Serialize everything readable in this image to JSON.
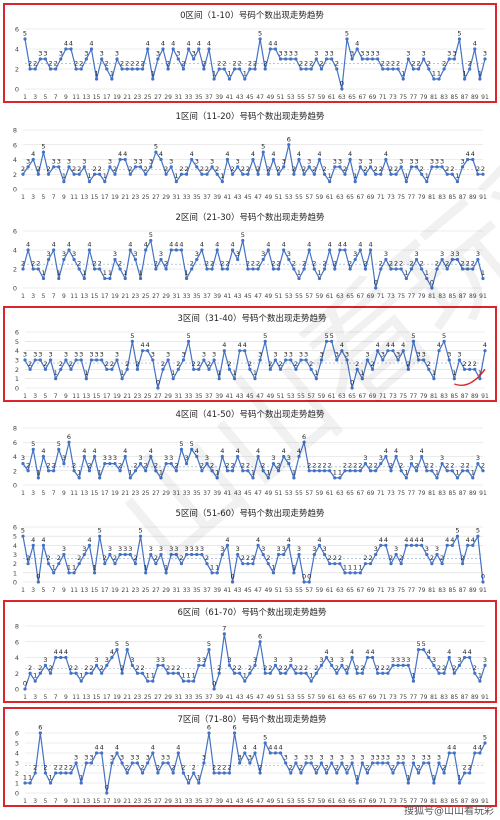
{
  "footer": "搜狐号@山山看玩彩",
  "watermark": "山山看玩彩",
  "colors": {
    "line": "#4472c4",
    "highlight": "#d9262c",
    "grid": "#d9d9d9",
    "avg": "#8aa6d6"
  },
  "chart_data": [
    {
      "type": "line",
      "title": "0区间（1-10）号码个数出现走势趋势",
      "ylim": [
        0,
        6
      ],
      "yticks": [
        0,
        2,
        4,
        6
      ],
      "highlighted": true,
      "x": [
        1,
        2,
        3,
        4,
        5,
        6,
        7,
        8,
        9,
        10,
        11,
        12,
        13,
        14,
        15,
        16,
        17,
        18,
        19,
        20,
        21,
        22,
        23,
        24,
        25,
        26,
        27,
        28,
        29,
        30,
        31,
        32,
        33,
        34,
        35,
        36,
        37,
        38,
        39,
        40,
        41,
        42,
        43,
        44,
        45,
        46,
        47,
        48,
        49,
        50,
        51,
        52,
        53,
        54,
        55,
        56,
        57,
        58,
        59,
        60,
        61,
        62,
        63,
        64,
        65,
        66,
        67,
        68,
        69,
        70,
        71,
        72,
        73,
        74,
        75,
        76,
        77,
        78,
        79,
        80,
        81,
        82,
        83,
        84,
        85,
        86,
        87,
        88,
        89,
        90,
        91
      ],
      "values": [
        5,
        2,
        2,
        3,
        3,
        2,
        2,
        3,
        4,
        4,
        2,
        2,
        3,
        4,
        1,
        3,
        2,
        1,
        3,
        2,
        2,
        2,
        2,
        2,
        4,
        1,
        3,
        4,
        2,
        4,
        3,
        2,
        4,
        3,
        4,
        2,
        4,
        1,
        2,
        2,
        1,
        2,
        2,
        1,
        2,
        2,
        5,
        2,
        4,
        4,
        3,
        3,
        3,
        3,
        2,
        2,
        2,
        3,
        2,
        3,
        3,
        2,
        0,
        5,
        3,
        4,
        3,
        3,
        3,
        3,
        2,
        2,
        2,
        2,
        1,
        3,
        2,
        2,
        3,
        2,
        1,
        1,
        2,
        3,
        3,
        5,
        1,
        2,
        4,
        1,
        3
      ]
    },
    {
      "type": "line",
      "title": "1区间（11-20）号码个数出现走势趋势",
      "ylim": [
        0,
        8
      ],
      "yticks": [
        0,
        2,
        4,
        6,
        8
      ],
      "highlighted": false,
      "x": [
        1,
        2,
        3,
        4,
        5,
        6,
        7,
        8,
        9,
        10,
        11,
        12,
        13,
        14,
        15,
        16,
        17,
        18,
        19,
        20,
        21,
        22,
        23,
        24,
        25,
        26,
        27,
        28,
        29,
        30,
        31,
        32,
        33,
        34,
        35,
        36,
        37,
        38,
        39,
        40,
        41,
        42,
        43,
        44,
        45,
        46,
        47,
        48,
        49,
        50,
        51,
        52,
        53,
        54,
        55,
        56,
        57,
        58,
        59,
        60,
        61,
        62,
        63,
        64,
        65,
        66,
        67,
        68,
        69,
        70,
        71,
        72,
        73,
        74,
        75,
        76,
        77,
        78,
        79,
        80,
        81,
        82,
        83,
        84,
        85,
        86,
        87,
        88,
        89,
        90,
        91
      ],
      "values": [
        2,
        3,
        4,
        2,
        5,
        2,
        3,
        3,
        1,
        3,
        2,
        2,
        3,
        1,
        2,
        2,
        1,
        3,
        2,
        4,
        4,
        2,
        3,
        3,
        2,
        3,
        5,
        4,
        2,
        3,
        1,
        2,
        2,
        4,
        3,
        2,
        2,
        3,
        2,
        1,
        4,
        2,
        3,
        2,
        2,
        4,
        2,
        5,
        2,
        4,
        2,
        3,
        6,
        2,
        4,
        2,
        3,
        2,
        4,
        2,
        1,
        3,
        3,
        2,
        4,
        1,
        3,
        2,
        3,
        2,
        2,
        4,
        2,
        2,
        3,
        1,
        3,
        3,
        2,
        1,
        3,
        3,
        3,
        2,
        2,
        1,
        3,
        4,
        4,
        2,
        2
      ]
    },
    {
      "type": "line",
      "title": "2区间（21-30）号码个数出现走势趋势",
      "ylim": [
        0,
        6
      ],
      "yticks": [
        0,
        2,
        4,
        6
      ],
      "highlighted": false,
      "x": [
        1,
        2,
        3,
        4,
        5,
        6,
        7,
        8,
        9,
        10,
        11,
        12,
        13,
        14,
        15,
        16,
        17,
        18,
        19,
        20,
        21,
        22,
        23,
        24,
        25,
        26,
        27,
        28,
        29,
        30,
        31,
        32,
        33,
        34,
        35,
        36,
        37,
        38,
        39,
        40,
        41,
        42,
        43,
        44,
        45,
        46,
        47,
        48,
        49,
        50,
        51,
        52,
        53,
        54,
        55,
        56,
        57,
        58,
        59,
        60,
        61,
        62,
        63,
        64,
        65,
        66,
        67,
        68,
        69,
        70,
        71,
        72,
        73,
        74,
        75,
        76,
        77,
        78,
        79,
        80,
        81,
        82,
        83,
        84,
        85,
        86,
        87,
        88,
        89,
        90,
        91
      ],
      "values": [
        2,
        4,
        2,
        2,
        1,
        3,
        4,
        1,
        3,
        4,
        3,
        2,
        1,
        4,
        2,
        2,
        1,
        1,
        3,
        2,
        1,
        4,
        3,
        1,
        4,
        5,
        2,
        3,
        2,
        4,
        4,
        4,
        1,
        2,
        3,
        4,
        2,
        2,
        4,
        2,
        2,
        4,
        3,
        5,
        2,
        2,
        2,
        3,
        4,
        2,
        2,
        4,
        3,
        2,
        1,
        2,
        4,
        2,
        1,
        2,
        4,
        2,
        4,
        4,
        2,
        3,
        4,
        2,
        4,
        0,
        2,
        3,
        2,
        2,
        2,
        1,
        2,
        3,
        2,
        1,
        0,
        2,
        3,
        2,
        3,
        3,
        2,
        2,
        2,
        3,
        1
      ]
    },
    {
      "type": "line",
      "title": "3区间（31-40）号码个数出现走势趋势",
      "ylim": [
        0,
        6
      ],
      "yticks": [
        0,
        1,
        2,
        3,
        4,
        5,
        6
      ],
      "highlighted": true,
      "x": [
        1,
        2,
        3,
        4,
        5,
        6,
        7,
        8,
        9,
        10,
        11,
        12,
        13,
        14,
        15,
        16,
        17,
        18,
        19,
        20,
        21,
        22,
        23,
        24,
        25,
        26,
        27,
        28,
        29,
        30,
        31,
        32,
        33,
        34,
        35,
        36,
        37,
        38,
        39,
        40,
        41,
        42,
        43,
        44,
        45,
        46,
        47,
        48,
        49,
        50,
        51,
        52,
        53,
        54,
        55,
        56,
        57,
        58,
        59,
        60,
        61,
        62,
        63,
        64,
        65,
        66,
        67,
        68,
        69,
        70,
        71,
        72,
        73,
        74,
        75,
        76,
        77,
        78,
        79,
        80,
        81,
        82,
        83,
        84,
        85,
        86,
        87,
        88,
        89,
        90,
        91
      ],
      "values": [
        3,
        2,
        3,
        3,
        2,
        3,
        1,
        2,
        3,
        2,
        3,
        3,
        1,
        3,
        3,
        3,
        2,
        2,
        3,
        1,
        2,
        5,
        2,
        4,
        4,
        3,
        0,
        2,
        3,
        1,
        2,
        3,
        5,
        2,
        2,
        3,
        2,
        3,
        1,
        4,
        2,
        1,
        4,
        4,
        2,
        1,
        3,
        5,
        2,
        3,
        2,
        3,
        3,
        2,
        3,
        3,
        2,
        1,
        3,
        5,
        5,
        3,
        4,
        3,
        0,
        2,
        1,
        3,
        2,
        4,
        3,
        4,
        4,
        3,
        4,
        2,
        5,
        3,
        3,
        2,
        1,
        4,
        5,
        3,
        1,
        3,
        2,
        2,
        2,
        1,
        4
      ]
    },
    {
      "type": "line",
      "title": "4区间（41-50）号码个数出现走势趋势",
      "ylim": [
        0,
        8
      ],
      "yticks": [
        0,
        2,
        4,
        6,
        8
      ],
      "highlighted": false,
      "x": [
        1,
        2,
        3,
        4,
        5,
        6,
        7,
        8,
        9,
        10,
        11,
        12,
        13,
        14,
        15,
        16,
        17,
        18,
        19,
        20,
        21,
        22,
        23,
        24,
        25,
        26,
        27,
        28,
        29,
        30,
        31,
        32,
        33,
        34,
        35,
        36,
        37,
        38,
        39,
        40,
        41,
        42,
        43,
        44,
        45,
        46,
        47,
        48,
        49,
        50,
        51,
        52,
        53,
        54,
        55,
        56,
        57,
        58,
        59,
        60,
        61,
        62,
        63,
        64,
        65,
        66,
        67,
        68,
        69,
        70,
        71,
        72,
        73,
        74,
        75,
        76,
        77,
        78,
        79,
        80,
        81,
        82,
        83,
        84,
        85,
        86,
        87,
        88,
        89,
        90,
        91
      ],
      "values": [
        3,
        2,
        5,
        1,
        4,
        2,
        2,
        5,
        3,
        6,
        2,
        1,
        4,
        2,
        4,
        1,
        3,
        3,
        3,
        2,
        4,
        1,
        2,
        3,
        2,
        4,
        2,
        1,
        3,
        3,
        2,
        5,
        3,
        5,
        4,
        2,
        3,
        2,
        1,
        4,
        2,
        2,
        4,
        2,
        2,
        1,
        4,
        2,
        1,
        3,
        2,
        4,
        3,
        1,
        4,
        6,
        2,
        2,
        2,
        2,
        2,
        1,
        1,
        2,
        2,
        2,
        2,
        3,
        2,
        2,
        3,
        4,
        2,
        4,
        2,
        1,
        3,
        2,
        4,
        2,
        2,
        1,
        3,
        2,
        2,
        1,
        2,
        2,
        1,
        3,
        2
      ]
    },
    {
      "type": "line",
      "title": "5区间（51-60）号码个数出现走势趋势",
      "ylim": [
        0,
        6
      ],
      "yticks": [
        0,
        1,
        2,
        3,
        4,
        5,
        6
      ],
      "highlighted": false,
      "x": [
        1,
        2,
        3,
        4,
        5,
        6,
        7,
        8,
        9,
        10,
        11,
        12,
        13,
        14,
        15,
        16,
        17,
        18,
        19,
        20,
        21,
        22,
        23,
        24,
        25,
        26,
        27,
        28,
        29,
        30,
        31,
        32,
        33,
        34,
        35,
        36,
        37,
        38,
        39,
        40,
        41,
        42,
        43,
        44,
        45,
        46,
        47,
        48,
        49,
        50,
        51,
        52,
        53,
        54,
        55,
        56,
        57,
        58,
        59,
        60,
        61,
        62,
        63,
        64,
        65,
        66,
        67,
        68,
        69,
        70,
        71,
        72,
        73,
        74,
        75,
        76,
        77,
        78,
        79,
        80,
        81,
        82,
        83,
        84,
        85,
        86,
        87,
        88,
        89,
        90,
        91
      ],
      "values": [
        5,
        2,
        4,
        0,
        4,
        2,
        1,
        2,
        3,
        1,
        1,
        2,
        3,
        4,
        1,
        5,
        2,
        3,
        2,
        3,
        3,
        3,
        2,
        5,
        1,
        3,
        2,
        3,
        1,
        3,
        3,
        2,
        3,
        3,
        3,
        3,
        2,
        1,
        1,
        3,
        4,
        0,
        3,
        2,
        2,
        2,
        4,
        3,
        2,
        1,
        3,
        3,
        4,
        1,
        3,
        0,
        0,
        3,
        4,
        3,
        2,
        2,
        2,
        1,
        1,
        1,
        1,
        2,
        2,
        3,
        4,
        4,
        2,
        3,
        2,
        4,
        4,
        4,
        4,
        3,
        2,
        3,
        2,
        4,
        4,
        5,
        2,
        4,
        4,
        5,
        0
      ]
    },
    {
      "type": "line",
      "title": "6区间（61-70）号码个数出现走势趋势",
      "ylim": [
        0,
        8
      ],
      "yticks": [
        0,
        2,
        4,
        6,
        8
      ],
      "highlighted": true,
      "x": [
        1,
        2,
        3,
        4,
        5,
        6,
        7,
        8,
        9,
        10,
        11,
        12,
        13,
        14,
        15,
        16,
        17,
        18,
        19,
        20,
        21,
        22,
        23,
        24,
        25,
        26,
        27,
        28,
        29,
        30,
        31,
        32,
        33,
        34,
        35,
        36,
        37,
        38,
        39,
        40,
        41,
        42,
        43,
        44,
        45,
        46,
        47,
        48,
        49,
        50,
        51,
        52,
        53,
        54,
        55,
        56,
        57,
        58,
        59,
        60,
        61,
        62,
        63,
        64,
        65,
        66,
        67,
        68,
        69,
        70,
        71,
        72,
        73,
        74,
        75,
        76,
        77,
        78,
        79,
        80,
        81,
        82,
        83,
        84,
        85,
        86,
        87,
        88,
        89,
        90,
        91
      ],
      "values": [
        0,
        2,
        1,
        2,
        3,
        2,
        4,
        4,
        4,
        2,
        2,
        1,
        2,
        2,
        3,
        2,
        3,
        4,
        5,
        2,
        5,
        3,
        2,
        2,
        1,
        1,
        3,
        3,
        2,
        2,
        2,
        1,
        1,
        1,
        3,
        3,
        5,
        0,
        2,
        7,
        3,
        2,
        2,
        1,
        2,
        3,
        6,
        2,
        2,
        3,
        2,
        2,
        3,
        2,
        2,
        2,
        1,
        2,
        3,
        4,
        3,
        2,
        3,
        2,
        4,
        2,
        2,
        4,
        4,
        2,
        2,
        2,
        3,
        3,
        3,
        3,
        1,
        5,
        5,
        4,
        3,
        2,
        2,
        4,
        2,
        3,
        4,
        4,
        2,
        1,
        3
      ]
    },
    {
      "type": "line",
      "title": "7区间（71-80）号码个数出现走势趋势",
      "ylim": [
        0,
        6
      ],
      "yticks": [
        0,
        1,
        2,
        3,
        4,
        5,
        6
      ],
      "highlighted": true,
      "x": [
        1,
        2,
        3,
        4,
        5,
        6,
        7,
        8,
        9,
        10,
        11,
        12,
        13,
        14,
        15,
        16,
        17,
        18,
        19,
        20,
        21,
        22,
        23,
        24,
        25,
        26,
        27,
        28,
        29,
        30,
        31,
        32,
        33,
        34,
        35,
        36,
        37,
        38,
        39,
        40,
        41,
        42,
        43,
        44,
        45,
        46,
        47,
        48,
        49,
        50,
        51,
        52,
        53,
        54,
        55,
        56,
        57,
        58,
        59,
        60,
        61,
        62,
        63,
        64,
        65,
        66,
        67,
        68,
        69,
        70,
        71,
        72,
        73,
        74,
        75,
        76,
        77,
        78,
        79,
        80,
        81,
        82,
        83,
        84,
        85,
        86,
        87,
        88,
        89,
        90,
        91
      ],
      "values": [
        1,
        1,
        2,
        6,
        2,
        1,
        2,
        2,
        2,
        2,
        3,
        1,
        3,
        3,
        4,
        4,
        0,
        3,
        4,
        3,
        2,
        3,
        3,
        2,
        3,
        4,
        2,
        3,
        3,
        2,
        4,
        2,
        1,
        2,
        1,
        3,
        6,
        2,
        2,
        2,
        2,
        6,
        3,
        4,
        3,
        4,
        2,
        5,
        4,
        4,
        4,
        3,
        2,
        3,
        2,
        3,
        3,
        2,
        3,
        2,
        3,
        2,
        3,
        2,
        3,
        1,
        3,
        2,
        3,
        3,
        3,
        3,
        2,
        3,
        3,
        1,
        3,
        2,
        3,
        3,
        1,
        3,
        2,
        4,
        4,
        1,
        2,
        2,
        4,
        4,
        5
      ]
    }
  ]
}
